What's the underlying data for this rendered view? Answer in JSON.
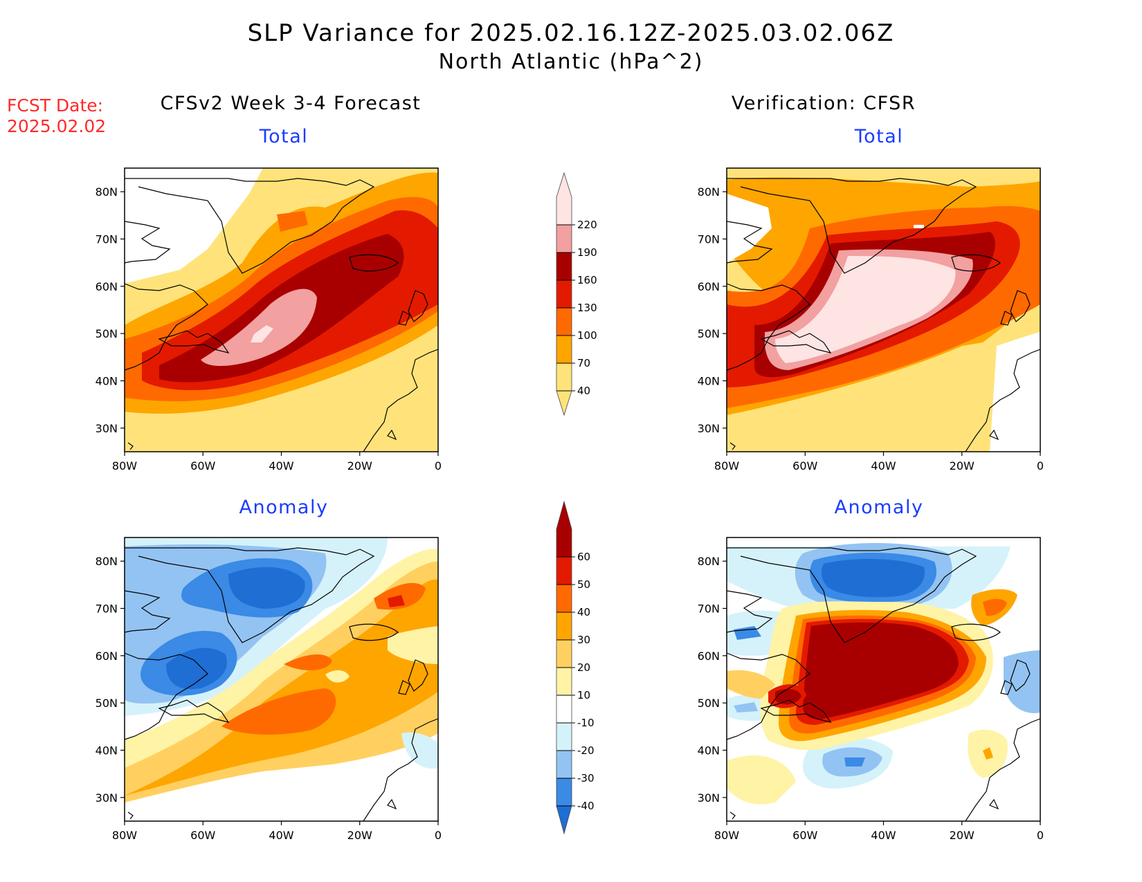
{
  "title": {
    "line1": "SLP Variance for 2025.02.16.12Z-2025.03.02.06Z",
    "line2": "North Atlantic (hPa^2)"
  },
  "fcst_label": {
    "line1": "FCST Date:",
    "line2": "2025.02.02",
    "color": "#ff2a2a"
  },
  "columns": {
    "left": "CFSv2 Week 3-4 Forecast",
    "right": "Verification: CFSR"
  },
  "panel_titles": {
    "top": "Total",
    "bottom": "Anomaly"
  },
  "axes": {
    "lat_ticks": [
      "30N",
      "40N",
      "50N",
      "60N",
      "70N",
      "80N"
    ],
    "lon_ticks": [
      "80W",
      "60W",
      "40W",
      "20W",
      "0"
    ]
  },
  "colorbars": {
    "total": {
      "levels": [
        "40",
        "70",
        "100",
        "130",
        "160",
        "190",
        "220"
      ],
      "colors": [
        "#ffe37a",
        "#ffa500",
        "#ff6a00",
        "#e31a00",
        "#a80000",
        "#f2a0a0",
        "#ffe4e4"
      ]
    },
    "anomaly": {
      "levels": [
        "-40",
        "-30",
        "-20",
        "-10",
        "10",
        "20",
        "30",
        "40",
        "50",
        "60"
      ],
      "colors": [
        "#1f6ed4",
        "#3a8ae6",
        "#93c3f2",
        "#d5f2fb",
        "#ffffff",
        "#fff3a6",
        "#ffd060",
        "#ffa500",
        "#ff6a00",
        "#e31a00",
        "#a80000"
      ]
    }
  },
  "chart_data": {
    "type": "heatmap",
    "region": "North Atlantic",
    "units": "hPa^2",
    "x_range": [
      -80,
      0
    ],
    "y_range": [
      25,
      85
    ],
    "panels": [
      "CFSv2 Week 3-4 Forecast Total",
      "Verification CFSR Total",
      "CFSv2 Week 3-4 Forecast Anomaly",
      "Verification CFSR Anomaly"
    ]
  }
}
